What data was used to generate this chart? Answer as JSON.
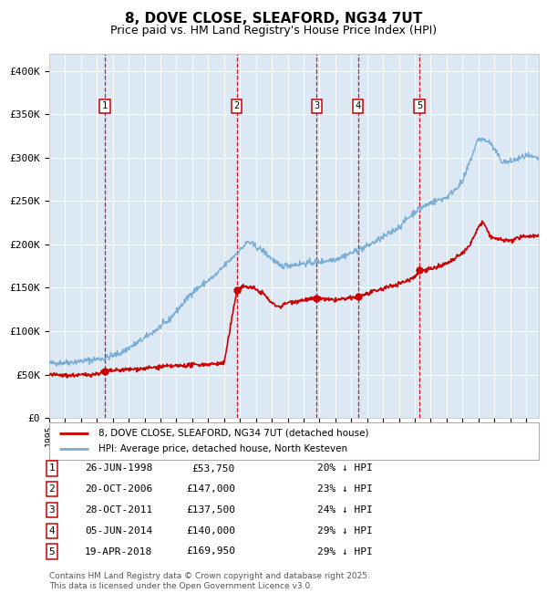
{
  "title": "8, DOVE CLOSE, SLEAFORD, NG34 7UT",
  "subtitle": "Price paid vs. HM Land Registry's House Price Index (HPI)",
  "title_fontsize": 11,
  "subtitle_fontsize": 9,
  "plot_bg_color": "#dce9f5",
  "grid_color": "#ffffff",
  "ylim": [
    0,
    420000
  ],
  "yticks": [
    0,
    50000,
    100000,
    150000,
    200000,
    250000,
    300000,
    350000,
    400000
  ],
  "ytick_labels": [
    "£0",
    "£50K",
    "£100K",
    "£150K",
    "£200K",
    "£250K",
    "£300K",
    "£350K",
    "£400K"
  ],
  "hpi_color": "#7aadd4",
  "price_color": "#cc0000",
  "marker_color": "#cc0000",
  "vline_color": "#cc0000",
  "legend_label_price": "8, DOVE CLOSE, SLEAFORD, NG34 7UT (detached house)",
  "legend_label_hpi": "HPI: Average price, detached house, North Kesteven",
  "transactions": [
    {
      "num": 1,
      "date": "26-JUN-1998",
      "price": 53750,
      "x": 1998.49,
      "pct": "20% ↓ HPI"
    },
    {
      "num": 2,
      "date": "20-OCT-2006",
      "price": 147000,
      "x": 2006.8,
      "pct": "23% ↓ HPI"
    },
    {
      "num": 3,
      "date": "28-OCT-2011",
      "price": 137500,
      "x": 2011.82,
      "pct": "24% ↓ HPI"
    },
    {
      "num": 4,
      "date": "05-JUN-2014",
      "price": 140000,
      "x": 2014.42,
      "pct": "29% ↓ HPI"
    },
    {
      "num": 5,
      "date": "19-APR-2018",
      "price": 169950,
      "x": 2018.29,
      "pct": "29% ↓ HPI"
    }
  ],
  "footer_text": "Contains HM Land Registry data © Crown copyright and database right 2025.\nThis data is licensed under the Open Government Licence v3.0.",
  "xmin": 1995.0,
  "xmax": 2025.8
}
